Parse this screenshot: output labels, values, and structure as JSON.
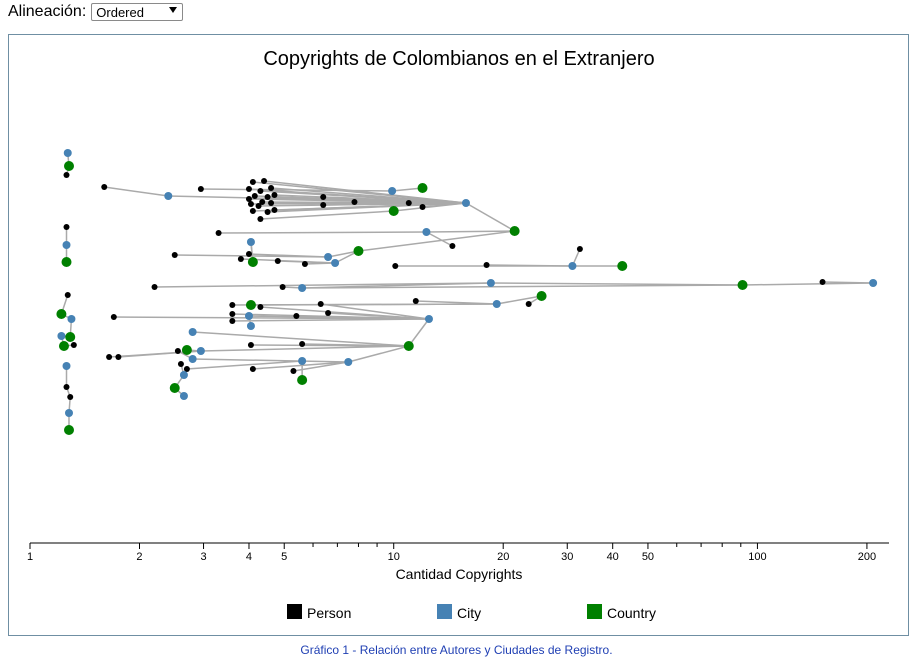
{
  "controls": {
    "alignment_label": "Alineación:",
    "alignment_value": "Ordered"
  },
  "caption": "Gráfico 1 - Relación entre Autores y Ciudades de Registro.",
  "chart_data": {
    "type": "scatter",
    "title": "Copyrights de Colombianos en el Extranjero",
    "xlabel": "Cantidad Copyrights",
    "ylabel": "",
    "xscale": "log",
    "xlim": [
      1,
      230
    ],
    "ticks": [
      {
        "v": 1,
        "label": "1"
      },
      {
        "v": 2,
        "label": "2"
      },
      {
        "v": 3,
        "label": "3"
      },
      {
        "v": 4,
        "label": "4"
      },
      {
        "v": 5,
        "label": "5"
      },
      {
        "v": 6,
        "label": ""
      },
      {
        "v": 7,
        "label": ""
      },
      {
        "v": 8,
        "label": ""
      },
      {
        "v": 9,
        "label": ""
      },
      {
        "v": 10,
        "label": "10"
      },
      {
        "v": 20,
        "label": "20"
      },
      {
        "v": 30,
        "label": "30"
      },
      {
        "v": 40,
        "label": "40"
      },
      {
        "v": 50,
        "label": "50"
      },
      {
        "v": 60,
        "label": ""
      },
      {
        "v": 70,
        "label": ""
      },
      {
        "v": 80,
        "label": ""
      },
      {
        "v": 90,
        "label": ""
      },
      {
        "v": 100,
        "label": "100"
      },
      {
        "v": 200,
        "label": "200"
      }
    ],
    "legend": [
      {
        "name": "Person",
        "color": "#000000"
      },
      {
        "name": "City",
        "color": "#4682b4"
      },
      {
        "name": "Country",
        "color": "#008000"
      }
    ],
    "legend_placement": "bottom",
    "colors": {
      "person": "#000000",
      "city": "#4682b4",
      "country": "#008000",
      "link": "#aaaaaa"
    },
    "nodes": [
      {
        "id": "c1",
        "type": "city",
        "x": 1.27,
        "y": 153
      },
      {
        "id": "k1",
        "type": "country",
        "x": 1.28,
        "y": 166
      },
      {
        "id": "p1",
        "type": "person",
        "x": 1.26,
        "y": 175
      },
      {
        "id": "p2",
        "type": "person",
        "x": 1.6,
        "y": 187
      },
      {
        "id": "c2",
        "type": "city",
        "x": 2.4,
        "y": 196
      },
      {
        "id": "p3",
        "type": "person",
        "x": 2.95,
        "y": 189
      },
      {
        "id": "p4",
        "type": "person",
        "x": 4.1,
        "y": 182
      },
      {
        "id": "p5",
        "type": "person",
        "x": 4.4,
        "y": 181
      },
      {
        "id": "p6",
        "type": "person",
        "x": 4.6,
        "y": 188
      },
      {
        "id": "p7",
        "type": "person",
        "x": 4.0,
        "y": 189
      },
      {
        "id": "p8",
        "type": "person",
        "x": 4.3,
        "y": 191
      },
      {
        "id": "p9",
        "type": "person",
        "x": 4.15,
        "y": 196
      },
      {
        "id": "p10",
        "type": "person",
        "x": 4.5,
        "y": 197
      },
      {
        "id": "p11",
        "type": "person",
        "x": 4.7,
        "y": 195
      },
      {
        "id": "p12",
        "type": "person",
        "x": 4.0,
        "y": 199
      },
      {
        "id": "p13",
        "type": "person",
        "x": 4.35,
        "y": 202
      },
      {
        "id": "p14",
        "type": "person",
        "x": 4.6,
        "y": 203
      },
      {
        "id": "p15",
        "type": "person",
        "x": 4.05,
        "y": 204
      },
      {
        "id": "p16",
        "type": "person",
        "x": 4.25,
        "y": 206
      },
      {
        "id": "p17",
        "type": "person",
        "x": 4.7,
        "y": 210
      },
      {
        "id": "p18",
        "type": "person",
        "x": 4.5,
        "y": 212
      },
      {
        "id": "p19",
        "type": "person",
        "x": 4.1,
        "y": 211
      },
      {
        "id": "p20",
        "type": "person",
        "x": 4.3,
        "y": 219
      },
      {
        "id": "p21",
        "type": "person",
        "x": 6.4,
        "y": 197
      },
      {
        "id": "p22",
        "type": "person",
        "x": 6.4,
        "y": 205
      },
      {
        "id": "p23",
        "type": "person",
        "x": 7.8,
        "y": 202
      },
      {
        "id": "c3",
        "type": "city",
        "x": 9.9,
        "y": 191
      },
      {
        "id": "k2",
        "type": "country",
        "x": 12.0,
        "y": 188
      },
      {
        "id": "k3",
        "type": "country",
        "x": 10.0,
        "y": 211
      },
      {
        "id": "p24",
        "type": "person",
        "x": 11.0,
        "y": 203
      },
      {
        "id": "p25",
        "type": "person",
        "x": 12.0,
        "y": 207
      },
      {
        "id": "c4",
        "type": "city",
        "x": 15.8,
        "y": 203
      },
      {
        "id": "p26",
        "type": "person",
        "x": 1.26,
        "y": 227
      },
      {
        "id": "c5",
        "type": "city",
        "x": 1.26,
        "y": 245
      },
      {
        "id": "k4",
        "type": "country",
        "x": 1.26,
        "y": 262
      },
      {
        "id": "p27",
        "type": "person",
        "x": 3.3,
        "y": 233
      },
      {
        "id": "c6",
        "type": "city",
        "x": 12.3,
        "y": 232
      },
      {
        "id": "k5",
        "type": "country",
        "x": 21.5,
        "y": 231
      },
      {
        "id": "c7",
        "type": "city",
        "x": 4.05,
        "y": 242
      },
      {
        "id": "p28",
        "type": "person",
        "x": 14.5,
        "y": 246
      },
      {
        "id": "p29",
        "type": "person",
        "x": 2.5,
        "y": 255
      },
      {
        "id": "p30",
        "type": "person",
        "x": 4.0,
        "y": 254
      },
      {
        "id": "p31",
        "type": "person",
        "x": 3.8,
        "y": 259
      },
      {
        "id": "k6",
        "type": "country",
        "x": 4.1,
        "y": 262
      },
      {
        "id": "p32",
        "type": "person",
        "x": 4.8,
        "y": 261
      },
      {
        "id": "p33",
        "type": "person",
        "x": 5.7,
        "y": 264
      },
      {
        "id": "c8",
        "type": "city",
        "x": 6.6,
        "y": 257
      },
      {
        "id": "c9",
        "type": "city",
        "x": 6.9,
        "y": 263
      },
      {
        "id": "k7",
        "type": "country",
        "x": 8.0,
        "y": 251
      },
      {
        "id": "p34",
        "type": "person",
        "x": 10.1,
        "y": 266
      },
      {
        "id": "p35",
        "type": "person",
        "x": 18.0,
        "y": 265
      },
      {
        "id": "c10",
        "type": "city",
        "x": 31.0,
        "y": 266
      },
      {
        "id": "p36",
        "type": "person",
        "x": 32.5,
        "y": 249
      },
      {
        "id": "k8",
        "type": "country",
        "x": 42.5,
        "y": 266
      },
      {
        "id": "p37",
        "type": "person",
        "x": 2.2,
        "y": 287
      },
      {
        "id": "p38",
        "type": "person",
        "x": 4.95,
        "y": 287
      },
      {
        "id": "c11",
        "type": "city",
        "x": 5.6,
        "y": 288
      },
      {
        "id": "c12",
        "type": "city",
        "x": 18.5,
        "y": 283
      },
      {
        "id": "p39",
        "type": "person",
        "x": 151.0,
        "y": 282
      },
      {
        "id": "k9",
        "type": "country",
        "x": 91.0,
        "y": 285
      },
      {
        "id": "c13",
        "type": "city",
        "x": 208.0,
        "y": 283
      },
      {
        "id": "p40",
        "type": "person",
        "x": 1.27,
        "y": 295
      },
      {
        "id": "k10",
        "type": "country",
        "x": 1.22,
        "y": 314
      },
      {
        "id": "c14",
        "type": "city",
        "x": 1.3,
        "y": 319
      },
      {
        "id": "c15",
        "type": "city",
        "x": 1.22,
        "y": 336
      },
      {
        "id": "k11",
        "type": "country",
        "x": 1.29,
        "y": 337
      },
      {
        "id": "k12",
        "type": "country",
        "x": 1.24,
        "y": 346
      },
      {
        "id": "p41",
        "type": "person",
        "x": 1.32,
        "y": 345
      },
      {
        "id": "p42",
        "type": "person",
        "x": 3.6,
        "y": 305
      },
      {
        "id": "k13",
        "type": "country",
        "x": 4.05,
        "y": 305
      },
      {
        "id": "p43",
        "type": "person",
        "x": 4.3,
        "y": 307
      },
      {
        "id": "p44",
        "type": "person",
        "x": 6.3,
        "y": 304
      },
      {
        "id": "p45",
        "type": "person",
        "x": 6.6,
        "y": 313
      },
      {
        "id": "p46",
        "type": "person",
        "x": 11.5,
        "y": 301
      },
      {
        "id": "c16",
        "type": "city",
        "x": 19.2,
        "y": 304
      },
      {
        "id": "p47",
        "type": "person",
        "x": 23.5,
        "y": 304
      },
      {
        "id": "k14",
        "type": "country",
        "x": 25.5,
        "y": 296
      },
      {
        "id": "p48",
        "type": "person",
        "x": 1.7,
        "y": 317
      },
      {
        "id": "p49",
        "type": "person",
        "x": 3.6,
        "y": 314
      },
      {
        "id": "c17",
        "type": "city",
        "x": 4.0,
        "y": 316
      },
      {
        "id": "p50",
        "type": "person",
        "x": 5.4,
        "y": 316
      },
      {
        "id": "p51",
        "type": "person",
        "x": 3.6,
        "y": 321
      },
      {
        "id": "c18",
        "type": "city",
        "x": 4.05,
        "y": 326
      },
      {
        "id": "c19",
        "type": "city",
        "x": 12.5,
        "y": 319
      },
      {
        "id": "c20",
        "type": "city",
        "x": 2.8,
        "y": 332
      },
      {
        "id": "p52",
        "type": "person",
        "x": 4.05,
        "y": 345
      },
      {
        "id": "p53",
        "type": "person",
        "x": 5.6,
        "y": 344
      },
      {
        "id": "k15",
        "type": "country",
        "x": 11.0,
        "y": 346
      },
      {
        "id": "p54",
        "type": "person",
        "x": 1.65,
        "y": 357
      },
      {
        "id": "p55",
        "type": "person",
        "x": 1.75,
        "y": 357
      },
      {
        "id": "p56",
        "type": "person",
        "x": 2.55,
        "y": 351
      },
      {
        "id": "k16",
        "type": "country",
        "x": 2.7,
        "y": 350
      },
      {
        "id": "c21",
        "type": "city",
        "x": 2.95,
        "y": 351
      },
      {
        "id": "c22",
        "type": "city",
        "x": 2.8,
        "y": 359
      },
      {
        "id": "p57",
        "type": "person",
        "x": 2.6,
        "y": 364
      },
      {
        "id": "p58",
        "type": "person",
        "x": 2.7,
        "y": 369
      },
      {
        "id": "c23",
        "type": "city",
        "x": 2.65,
        "y": 375
      },
      {
        "id": "p59",
        "type": "person",
        "x": 4.1,
        "y": 369
      },
      {
        "id": "c24",
        "type": "city",
        "x": 5.6,
        "y": 361
      },
      {
        "id": "c25",
        "type": "city",
        "x": 7.5,
        "y": 362
      },
      {
        "id": "p60",
        "type": "person",
        "x": 5.3,
        "y": 371
      },
      {
        "id": "k17",
        "type": "country",
        "x": 5.6,
        "y": 380
      },
      {
        "id": "k18",
        "type": "country",
        "x": 2.5,
        "y": 388
      },
      {
        "id": "c26",
        "type": "city",
        "x": 2.65,
        "y": 396
      },
      {
        "id": "c27",
        "type": "city",
        "x": 1.26,
        "y": 366
      },
      {
        "id": "p61",
        "type": "person",
        "x": 1.26,
        "y": 387
      },
      {
        "id": "p62",
        "type": "person",
        "x": 1.29,
        "y": 397
      },
      {
        "id": "c28",
        "type": "city",
        "x": 1.28,
        "y": 413
      },
      {
        "id": "k19",
        "type": "country",
        "x": 1.28,
        "y": 430
      }
    ],
    "links": [
      [
        "c1",
        "k1"
      ],
      [
        "k1",
        "p1"
      ],
      [
        "p2",
        "c2"
      ],
      [
        "c2",
        "c4"
      ],
      [
        "p3",
        "c3"
      ],
      [
        "c3",
        "k2"
      ],
      [
        "p4",
        "c4"
      ],
      [
        "p5",
        "c4"
      ],
      [
        "p6",
        "c4"
      ],
      [
        "p7",
        "c4"
      ],
      [
        "p8",
        "c4"
      ],
      [
        "p9",
        "c4"
      ],
      [
        "p10",
        "c4"
      ],
      [
        "p11",
        "c4"
      ],
      [
        "p12",
        "c4"
      ],
      [
        "p13",
        "c4"
      ],
      [
        "p14",
        "c4"
      ],
      [
        "p15",
        "c4"
      ],
      [
        "p16",
        "c4"
      ],
      [
        "p17",
        "c4"
      ],
      [
        "p18",
        "c4"
      ],
      [
        "p19",
        "c4"
      ],
      [
        "p20",
        "k3"
      ],
      [
        "p21",
        "c4"
      ],
      [
        "p22",
        "c4"
      ],
      [
        "p23",
        "c4"
      ],
      [
        "p24",
        "c4"
      ],
      [
        "p25",
        "c4"
      ],
      [
        "k3",
        "c4"
      ],
      [
        "c4",
        "k5"
      ],
      [
        "p26",
        "c5"
      ],
      [
        "c5",
        "k4"
      ],
      [
        "p27",
        "c6"
      ],
      [
        "c6",
        "k5"
      ],
      [
        "c7",
        "k6"
      ],
      [
        "p28",
        "c6"
      ],
      [
        "p29",
        "c8"
      ],
      [
        "p30",
        "c8"
      ],
      [
        "p31",
        "c9"
      ],
      [
        "p32",
        "c9"
      ],
      [
        "p33",
        "c9"
      ],
      [
        "c8",
        "k7"
      ],
      [
        "c9",
        "k7"
      ],
      [
        "k6",
        "c7"
      ],
      [
        "p34",
        "c10"
      ],
      [
        "p35",
        "c10"
      ],
      [
        "p36",
        "c10"
      ],
      [
        "c10",
        "k8"
      ],
      [
        "k7",
        "k5"
      ],
      [
        "p37",
        "c12"
      ],
      [
        "p38",
        "c11"
      ],
      [
        "c11",
        "c12"
      ],
      [
        "c12",
        "k9"
      ],
      [
        "p39",
        "c13"
      ],
      [
        "k9",
        "c13"
      ],
      [
        "c11",
        "k9"
      ],
      [
        "p40",
        "k10"
      ],
      [
        "k10",
        "c14"
      ],
      [
        "c14",
        "k11"
      ],
      [
        "c15",
        "k12"
      ],
      [
        "k12",
        "p41"
      ],
      [
        "k11",
        "c15"
      ],
      [
        "p42",
        "c16"
      ],
      [
        "k13",
        "c16"
      ],
      [
        "p43",
        "c19"
      ],
      [
        "p44",
        "c19"
      ],
      [
        "p45",
        "c19"
      ],
      [
        "p46",
        "c16"
      ],
      [
        "c16",
        "k14"
      ],
      [
        "p47",
        "k14"
      ],
      [
        "p48",
        "c19"
      ],
      [
        "p49",
        "c19"
      ],
      [
        "c17",
        "c19"
      ],
      [
        "p50",
        "c19"
      ],
      [
        "p51",
        "c19"
      ],
      [
        "c18",
        "c17"
      ],
      [
        "c19",
        "k15"
      ],
      [
        "c20",
        "k15"
      ],
      [
        "p52",
        "k15"
      ],
      [
        "p53",
        "k15"
      ],
      [
        "p54",
        "c21"
      ],
      [
        "p55",
        "c21"
      ],
      [
        "p56",
        "c22"
      ],
      [
        "k16",
        "c21"
      ],
      [
        "c21",
        "k15"
      ],
      [
        "c22",
        "c25"
      ],
      [
        "p57",
        "c23"
      ],
      [
        "p58",
        "c24"
      ],
      [
        "c23",
        "k18"
      ],
      [
        "p59",
        "c25"
      ],
      [
        "c24",
        "k17"
      ],
      [
        "c25",
        "k15"
      ],
      [
        "p60",
        "c25"
      ],
      [
        "k18",
        "c26"
      ],
      [
        "c27",
        "p61"
      ],
      [
        "p61",
        "p62"
      ],
      [
        "p62",
        "c28"
      ],
      [
        "c28",
        "k19"
      ]
    ]
  }
}
